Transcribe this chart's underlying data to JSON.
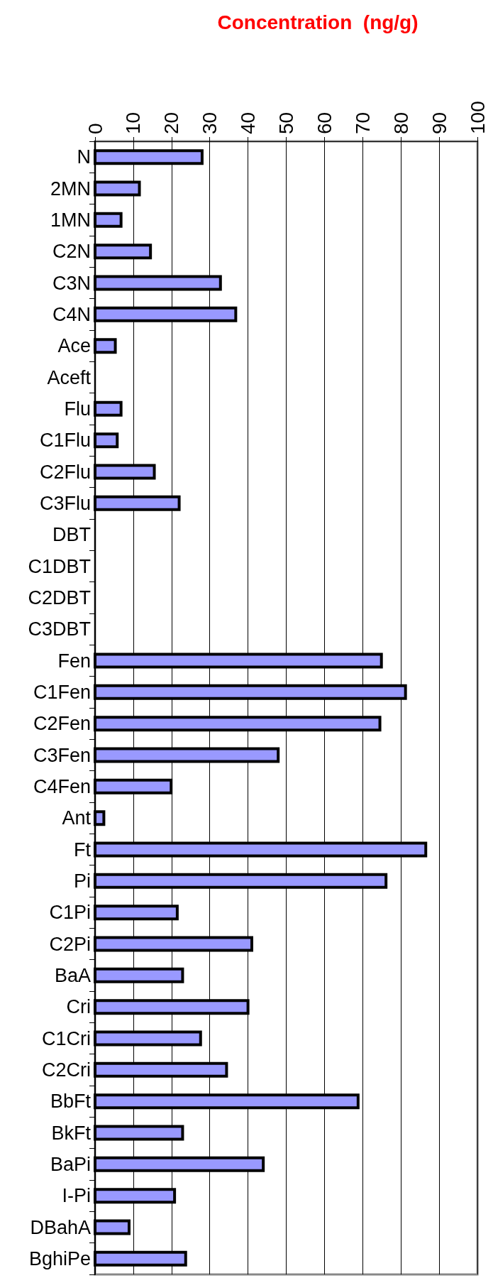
{
  "chart_data": {
    "type": "bar",
    "orientation": "horizontal",
    "xlabel": "Concentration  (ng/g)",
    "categories": [
      "N",
      "2MN",
      "1MN",
      "C2N",
      "C3N",
      "C4N",
      "Ace",
      "Aceft",
      "Flu",
      "C1Flu",
      "C2Flu",
      "C3Flu",
      "DBT",
      "C1DBT",
      "C2DBT",
      "C3DBT",
      "Fen",
      "C1Fen",
      "C2Fen",
      "C3Fen",
      "C4Fen",
      "Ant",
      "Ft",
      "Pi",
      "C1Pi",
      "C2Pi",
      "BaA",
      "Cri",
      "C1Cri",
      "C2Cri",
      "BbFt",
      "BkFt",
      "BaPi",
      "I-Pi",
      "DBahA",
      "BghiPe"
    ],
    "values": [
      28,
      11.6,
      6.8,
      14.5,
      32.8,
      36.8,
      5.3,
      0,
      6.8,
      5.8,
      15.5,
      22,
      0,
      0,
      0,
      0,
      74.9,
      81.2,
      74.5,
      47.9,
      19.9,
      2.3,
      86.5,
      76.1,
      21.5,
      41,
      22.9,
      40,
      27.6,
      34.4,
      68.8,
      22.9,
      44,
      20.8,
      8.9,
      23.7
    ],
    "color": "#9999ff",
    "xlim": [
      0,
      100
    ],
    "xticks": [
      0,
      10,
      20,
      30,
      40,
      50,
      60,
      70,
      80,
      90,
      100
    ],
    "grid": "x"
  }
}
